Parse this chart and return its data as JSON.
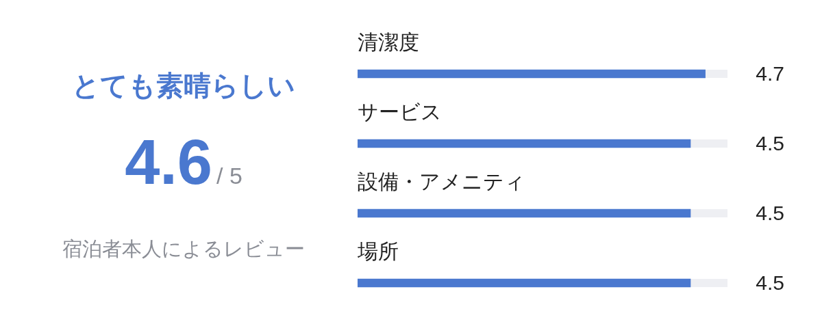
{
  "chart_data": [
    {
      "type": "other",
      "title": "とても素晴らしい",
      "annotations": [
        "4.6",
        "/ 5",
        "宿泊者本人によるレビュー"
      ]
    },
    {
      "type": "bar",
      "orientation": "horizontal",
      "categories": [
        "清潔度",
        "サービス",
        "設備・アメニティ",
        "場所"
      ],
      "values": [
        4.7,
        4.5,
        4.5,
        4.5
      ],
      "color": "#4a78cf",
      "xlim": [
        0,
        5
      ],
      "data_labels": true,
      "tick_labels": false
    }
  ]
}
